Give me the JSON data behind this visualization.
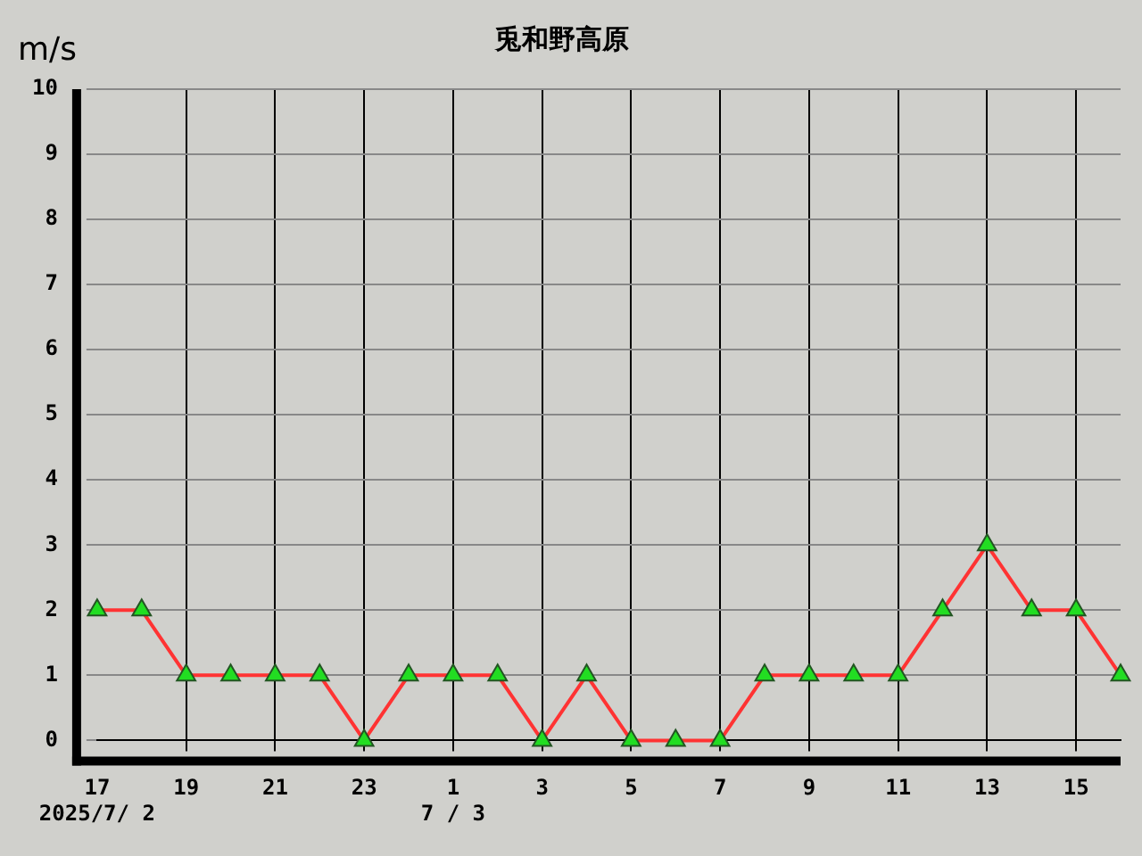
{
  "chart_data": {
    "type": "line",
    "title": "兎和野高原",
    "ylabel": "m/s",
    "x": [
      "2025-07-02T17:00",
      "2025-07-02T18:00",
      "2025-07-02T19:00",
      "2025-07-02T20:00",
      "2025-07-02T21:00",
      "2025-07-02T22:00",
      "2025-07-02T23:00",
      "2025-07-03T00:00",
      "2025-07-03T01:00",
      "2025-07-03T02:00",
      "2025-07-03T03:00",
      "2025-07-03T04:00",
      "2025-07-03T05:00",
      "2025-07-03T06:00",
      "2025-07-03T07:00",
      "2025-07-03T08:00",
      "2025-07-03T09:00",
      "2025-07-03T10:00",
      "2025-07-03T11:00",
      "2025-07-03T12:00",
      "2025-07-03T13:00",
      "2025-07-03T14:00",
      "2025-07-03T15:00",
      "2025-07-03T16:00"
    ],
    "series": [
      {
        "color": "#ff3333",
        "values": [
          2,
          2,
          1,
          1,
          1,
          1,
          0,
          1,
          1,
          1,
          0,
          1,
          0,
          0,
          0,
          1,
          1,
          1,
          1,
          2,
          3,
          2,
          2,
          1
        ]
      }
    ],
    "xlim": [
      "2025-07-02T17:00",
      "2025-07-03T16:00"
    ],
    "xticks": [
      {
        "value": "2025-07-02T17:00",
        "label": "17\n2025/7/ 2"
      },
      {
        "value": "2025-07-02T19:00",
        "label": "19"
      },
      {
        "value": "2025-07-02T21:00",
        "label": "21"
      },
      {
        "value": "2025-07-02T23:00",
        "label": "23"
      },
      {
        "value": "2025-07-03T01:00",
        "label": "1\n7 / 3"
      },
      {
        "value": "2025-07-03T03:00",
        "label": "3"
      },
      {
        "value": "2025-07-03T05:00",
        "label": "5"
      },
      {
        "value": "2025-07-03T07:00",
        "label": "7"
      },
      {
        "value": "2025-07-03T09:00",
        "label": "9"
      },
      {
        "value": "2025-07-03T11:00",
        "label": "11"
      },
      {
        "value": "2025-07-03T13:00",
        "label": "13"
      },
      {
        "value": "2025-07-03T15:00",
        "label": "15"
      }
    ],
    "ylim": [
      0,
      10
    ],
    "yticks": [
      0,
      1,
      2,
      3,
      4,
      5,
      6,
      7,
      8,
      9,
      10
    ],
    "grid": true,
    "legend": false,
    "marker": "triangle",
    "line_style": "solid"
  }
}
